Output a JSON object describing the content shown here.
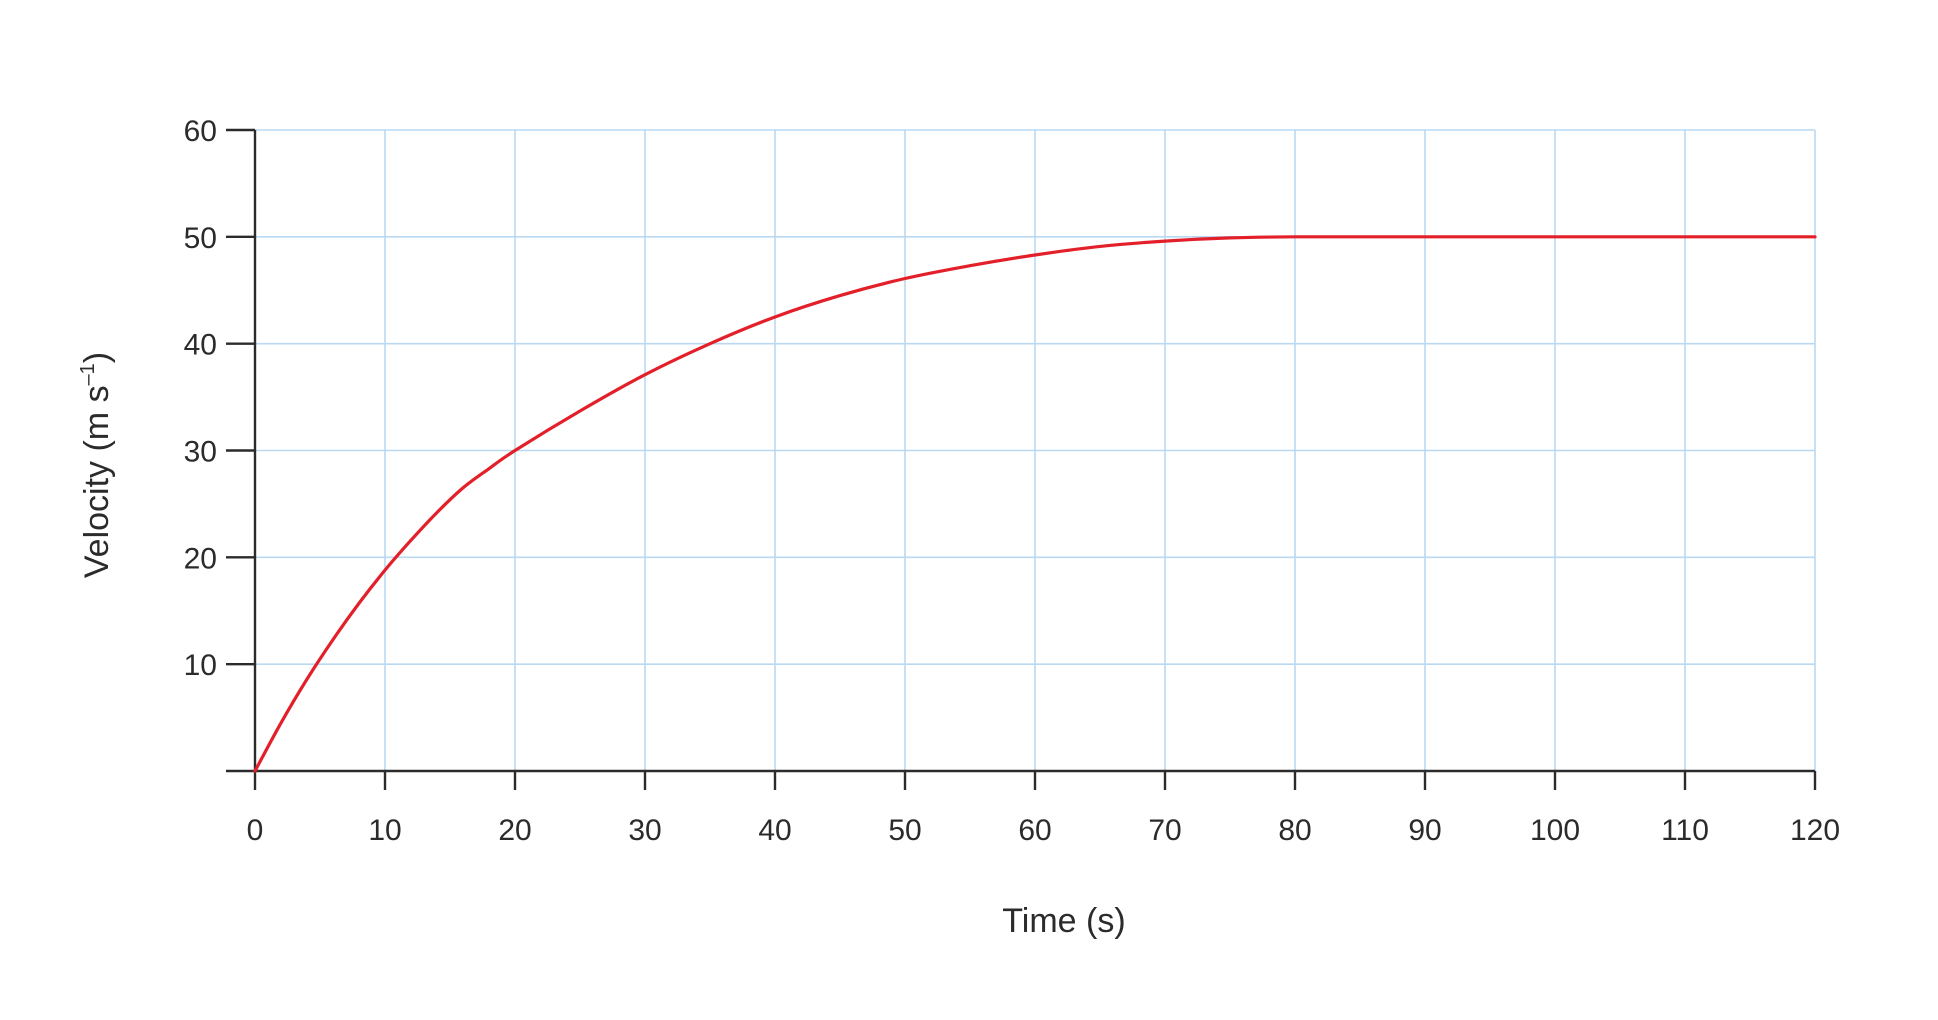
{
  "chart_data": {
    "type": "line",
    "title": "",
    "xlabel": "Time (s)",
    "ylabel_main": "Velocity (m s",
    "ylabel_sup": "–1",
    "ylabel_close": ")",
    "xlim": [
      0,
      120
    ],
    "ylim": [
      0,
      60
    ],
    "x_ticks": [
      0,
      10,
      20,
      30,
      40,
      50,
      60,
      70,
      80,
      90,
      100,
      110,
      120
    ],
    "y_ticks": [
      10,
      20,
      30,
      40,
      50,
      60
    ],
    "grid": true,
    "colors": {
      "line": "#e3202a",
      "grid": "#b9d9f2",
      "axis": "#2b2b2b"
    },
    "series": [
      {
        "x": [
          0,
          2,
          4,
          6,
          8,
          10,
          12,
          14,
          16,
          18,
          20,
          25,
          30,
          35,
          40,
          45,
          50,
          55,
          60,
          65,
          70,
          75,
          80,
          90,
          100,
          110,
          120
        ],
        "y": [
          0,
          4.5,
          8.6,
          12.3,
          15.7,
          18.8,
          21.6,
          24.2,
          26.5,
          28.3,
          30.0,
          33.7,
          37.1,
          40.0,
          42.5,
          44.5,
          46.1,
          47.3,
          48.3,
          49.1,
          49.6,
          49.9,
          50,
          50,
          50,
          50,
          50
        ]
      }
    ]
  }
}
